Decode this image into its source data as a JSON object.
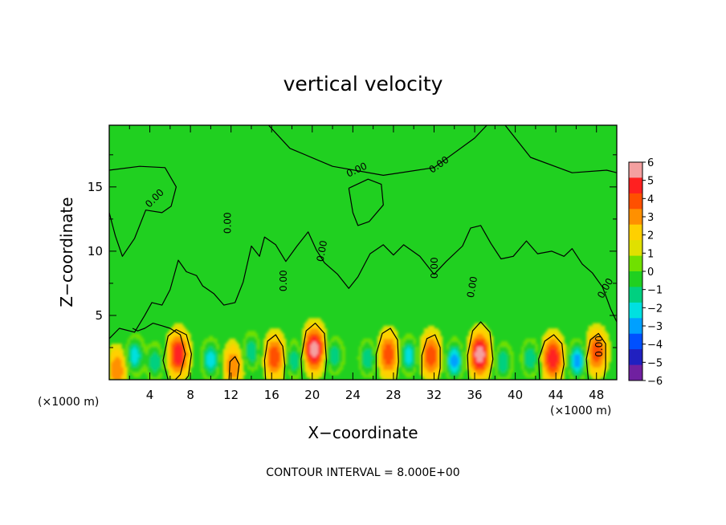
{
  "chart_data": {
    "type": "heatmap",
    "title": "vertical velocity",
    "xlabel": "X−coordinate",
    "ylabel": "Z−coordinate",
    "x_unit_left": "(×1000 m)",
    "x_unit_right": "(×1000 m)",
    "footer": "CONTOUR INTERVAL = 8.000E+00",
    "xlim": [
      0,
      50
    ],
    "ylim": [
      0,
      19.8
    ],
    "x_ticks": [
      4,
      8,
      12,
      16,
      20,
      24,
      28,
      32,
      36,
      40,
      44,
      48
    ],
    "y_ticks": [
      5,
      10,
      15
    ],
    "contour_label": "0.00",
    "colorbar": {
      "ticks": [
        6,
        5,
        4,
        3,
        2,
        1,
        0,
        -1,
        -2,
        -3,
        -4,
        -5,
        -6
      ],
      "tick_labels": [
        "6",
        "5",
        "4",
        "3",
        "2",
        "1",
        "0",
        "−1",
        "−2",
        "−3",
        "−4",
        "−5",
        "−6"
      ],
      "colors": [
        "#f4a0a0",
        "#ff2020",
        "#ff5000",
        "#ff9000",
        "#ffd000",
        "#e0e000",
        "#70e000",
        "#20d020",
        "#00d080",
        "#00e0e0",
        "#00a0ff",
        "#0050ff",
        "#2020c0",
        "#7020a0"
      ]
    },
    "background_value": 0,
    "updrafts": [
      {
        "x": 0.8,
        "z": 0.8,
        "peak": 3
      },
      {
        "x": 6.8,
        "z": 2.0,
        "peak": 5
      },
      {
        "x": 12.2,
        "z": 1.1,
        "peak": 3
      },
      {
        "x": 16.3,
        "z": 1.8,
        "peak": 4
      },
      {
        "x": 20.2,
        "z": 2.4,
        "peak": 6
      },
      {
        "x": 27.5,
        "z": 2.0,
        "peak": 4
      },
      {
        "x": 31.7,
        "z": 1.9,
        "peak": 4
      },
      {
        "x": 36.5,
        "z": 2.0,
        "peak": 6
      },
      {
        "x": 43.7,
        "z": 1.7,
        "peak": 5
      },
      {
        "x": 48.0,
        "z": 2.2,
        "peak": 4
      }
    ],
    "downdrafts": [
      {
        "x": 2.5,
        "z": 1.9,
        "peak": -4
      },
      {
        "x": 4.5,
        "z": 1.4,
        "peak": -3
      },
      {
        "x": 10.0,
        "z": 1.6,
        "peak": -4
      },
      {
        "x": 14.0,
        "z": 2.2,
        "peak": -3
      },
      {
        "x": 18.2,
        "z": 1.6,
        "peak": -3
      },
      {
        "x": 22.2,
        "z": 1.9,
        "peak": -3
      },
      {
        "x": 25.5,
        "z": 1.7,
        "peak": -3
      },
      {
        "x": 29.5,
        "z": 1.9,
        "peak": -4
      },
      {
        "x": 34.0,
        "z": 1.5,
        "peak": -5
      },
      {
        "x": 38.8,
        "z": 1.4,
        "peak": -3
      },
      {
        "x": 41.5,
        "z": 1.7,
        "peak": -3
      },
      {
        "x": 46.1,
        "z": 1.5,
        "peak": -5
      }
    ],
    "zero_contours": [
      [
        [
          0,
          16.3
        ],
        [
          3,
          16.6
        ],
        [
          5.5,
          16.5
        ],
        [
          6.6,
          15.0
        ],
        [
          6.1,
          13.5
        ],
        [
          5.2,
          13.0
        ],
        [
          3.6,
          13.2
        ],
        [
          2.5,
          11.0
        ],
        [
          1.3,
          9.6
        ],
        [
          0.6,
          11.2
        ],
        [
          0,
          13.0
        ]
      ],
      [
        [
          15.7,
          19.8
        ],
        [
          17.8,
          18.0
        ],
        [
          22.0,
          16.6
        ],
        [
          27.0,
          15.9
        ],
        [
          32.0,
          16.5
        ],
        [
          36.0,
          18.8
        ],
        [
          37.2,
          19.8
        ]
      ],
      [
        [
          39.0,
          19.8
        ],
        [
          41.5,
          17.3
        ],
        [
          45.6,
          16.1
        ],
        [
          49.0,
          16.3
        ],
        [
          50,
          16.1
        ]
      ],
      [
        [
          23.6,
          14.9
        ],
        [
          25.5,
          15.6
        ],
        [
          26.8,
          15.2
        ],
        [
          27.0,
          13.6
        ],
        [
          25.6,
          12.3
        ],
        [
          24.5,
          12.0
        ],
        [
          24.0,
          13.0
        ],
        [
          23.6,
          14.9
        ]
      ],
      [
        [
          0,
          3.2
        ],
        [
          1.0,
          4.0
        ],
        [
          2.5,
          3.7
        ],
        [
          3.5,
          5.0
        ],
        [
          4.2,
          6.0
        ],
        [
          5.2,
          5.8
        ],
        [
          6.0,
          7.0
        ],
        [
          6.8,
          9.3
        ],
        [
          7.6,
          8.4
        ],
        [
          8.6,
          8.1
        ],
        [
          9.2,
          7.3
        ],
        [
          10.3,
          6.7
        ],
        [
          11.3,
          5.8
        ],
        [
          12.4,
          6.0
        ],
        [
          13.2,
          7.6
        ],
        [
          14.0,
          10.4
        ],
        [
          14.8,
          9.6
        ],
        [
          15.3,
          11.1
        ],
        [
          16.4,
          10.5
        ],
        [
          17.4,
          9.2
        ],
        [
          18.5,
          10.4
        ],
        [
          19.6,
          11.5
        ],
        [
          20.4,
          10.1
        ],
        [
          21.2,
          9.1
        ],
        [
          22.5,
          8.2
        ],
        [
          23.6,
          7.1
        ],
        [
          24.5,
          8.0
        ],
        [
          25.7,
          9.8
        ],
        [
          27.0,
          10.5
        ],
        [
          28.0,
          9.7
        ],
        [
          29.0,
          10.5
        ],
        [
          30.6,
          9.6
        ],
        [
          32.0,
          8.2
        ],
        [
          33.2,
          9.2
        ],
        [
          34.8,
          10.4
        ],
        [
          35.6,
          11.8
        ],
        [
          36.6,
          12.0
        ],
        [
          37.6,
          10.6
        ],
        [
          38.6,
          9.4
        ],
        [
          39.8,
          9.6
        ],
        [
          41.1,
          10.8
        ],
        [
          42.2,
          9.8
        ],
        [
          43.6,
          10.0
        ],
        [
          44.8,
          9.6
        ],
        [
          45.6,
          10.2
        ],
        [
          46.6,
          9.0
        ],
        [
          47.6,
          8.3
        ],
        [
          48.6,
          7.2
        ],
        [
          49.4,
          5.5
        ],
        [
          50,
          4.5
        ]
      ],
      [
        [
          2.3,
          4.0
        ],
        [
          2.8,
          3.8
        ],
        [
          3.5,
          4.0
        ],
        [
          4.3,
          4.4
        ],
        [
          5.2,
          4.2
        ],
        [
          6.0,
          4.0
        ],
        [
          7.0,
          3.5
        ],
        [
          7.5,
          2.0
        ],
        [
          7.0,
          0.4
        ],
        [
          6.5,
          0.0
        ]
      ],
      [
        [
          5.8,
          0.0
        ],
        [
          5.3,
          1.5
        ],
        [
          5.8,
          3.4
        ],
        [
          6.6,
          3.9
        ],
        [
          7.6,
          3.5
        ],
        [
          8.1,
          2.0
        ],
        [
          7.8,
          0.3
        ],
        [
          7.5,
          0.0
        ]
      ],
      [
        [
          11.8,
          0.0
        ],
        [
          11.9,
          1.4
        ],
        [
          12.4,
          1.8
        ],
        [
          12.8,
          1.2
        ],
        [
          12.6,
          0.0
        ]
      ],
      [
        [
          15.4,
          0.0
        ],
        [
          15.3,
          1.5
        ],
        [
          15.6,
          3.0
        ],
        [
          16.4,
          3.5
        ],
        [
          17.1,
          2.6
        ],
        [
          17.3,
          1.1
        ],
        [
          17.2,
          0.0
        ]
      ],
      [
        [
          19.0,
          0.0
        ],
        [
          18.9,
          1.6
        ],
        [
          19.4,
          3.8
        ],
        [
          20.3,
          4.4
        ],
        [
          21.2,
          3.6
        ],
        [
          21.4,
          1.5
        ],
        [
          21.2,
          0.0
        ]
      ],
      [
        [
          26.3,
          0.0
        ],
        [
          26.3,
          2.0
        ],
        [
          26.9,
          3.6
        ],
        [
          27.7,
          4.0
        ],
        [
          28.4,
          3.1
        ],
        [
          28.5,
          1.4
        ],
        [
          28.3,
          0.0
        ]
      ],
      [
        [
          30.8,
          0.0
        ],
        [
          30.8,
          1.9
        ],
        [
          31.3,
          3.2
        ],
        [
          32.1,
          3.5
        ],
        [
          32.6,
          2.5
        ],
        [
          32.6,
          0.9
        ],
        [
          32.4,
          0.0
        ]
      ],
      [
        [
          35.4,
          0.0
        ],
        [
          35.3,
          1.9
        ],
        [
          35.8,
          3.8
        ],
        [
          36.6,
          4.5
        ],
        [
          37.5,
          3.7
        ],
        [
          37.8,
          1.6
        ],
        [
          37.4,
          0.0
        ]
      ],
      [
        [
          42.4,
          0.0
        ],
        [
          42.3,
          1.6
        ],
        [
          42.9,
          3.0
        ],
        [
          43.8,
          3.5
        ],
        [
          44.6,
          2.8
        ],
        [
          44.8,
          1.2
        ],
        [
          44.5,
          0.0
        ]
      ],
      [
        [
          47.2,
          0.0
        ],
        [
          47.0,
          1.6
        ],
        [
          47.4,
          3.1
        ],
        [
          48.2,
          3.6
        ],
        [
          48.9,
          2.8
        ],
        [
          48.9,
          1.0
        ],
        [
          48.7,
          0.0
        ]
      ]
    ]
  }
}
